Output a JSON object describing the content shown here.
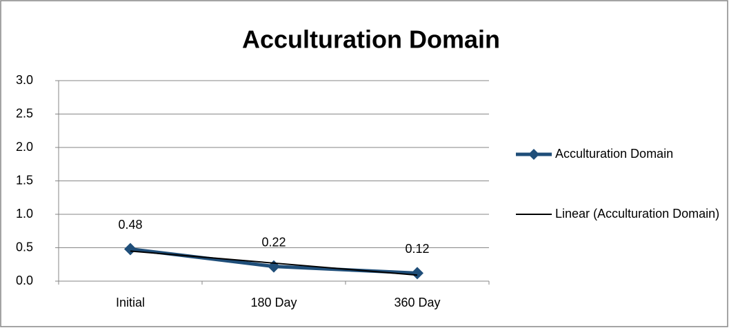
{
  "chart_data": {
    "type": "line",
    "title": "Acculturation Domain",
    "categories": [
      "Initial",
      "180 Day",
      "360 Day"
    ],
    "series": [
      {
        "name": "Acculturation Domain",
        "color": "#1f4e79",
        "values": [
          0.48,
          0.22,
          0.12
        ],
        "marker": "diamond",
        "data_labels": true
      },
      {
        "name": "Linear (Acculturation Domain)",
        "color": "#000000",
        "values": [
          0.45,
          0.27,
          0.09
        ]
      }
    ],
    "ylim": [
      0,
      3
    ],
    "yticks": [
      {
        "value": 0,
        "label": "0.0"
      },
      0.5,
      {
        "value": 1,
        "label": "1.0"
      },
      1.5,
      {
        "value": 2,
        "label": "2.0"
      },
      2.5,
      {
        "value": 3,
        "label": "3.0"
      }
    ],
    "grid": true,
    "legend": "right"
  }
}
